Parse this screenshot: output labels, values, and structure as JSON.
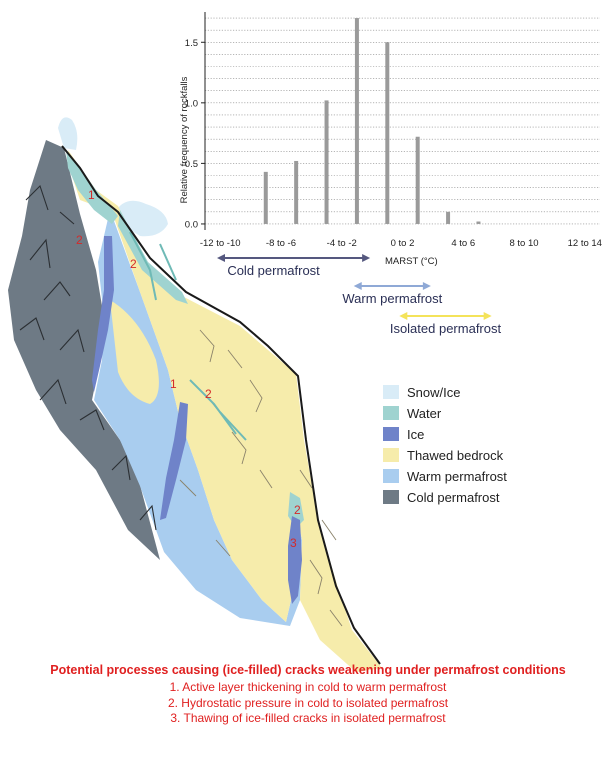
{
  "chart_data": {
    "type": "bar",
    "ylabel": "Relative frequency of rockfalls",
    "xlabel": "MARST (°C)",
    "y_ticks": [
      "0.0",
      "0.5",
      "1.0",
      "1.5"
    ],
    "ylim": [
      -0.05,
      1.75
    ],
    "x_ticks": [
      "-12 to -10",
      "-8 to -6",
      "-4 to -2",
      "0 to 2",
      "4 to 6",
      "8 to 10",
      "12 to 14"
    ],
    "xlim": [
      -12,
      14
    ],
    "grid": true,
    "series": [
      {
        "values": [
          {
            "x": -8,
            "y": 0.43
          },
          {
            "x": -6,
            "y": 0.52
          },
          {
            "x": -4,
            "y": 1.02
          },
          {
            "x": -2,
            "y": 1.7
          },
          {
            "x": 0,
            "y": 1.5
          },
          {
            "x": 2,
            "y": 0.72
          },
          {
            "x": 4,
            "y": 0.1
          },
          {
            "x": 6,
            "y": 0.02
          }
        ]
      }
    ]
  },
  "ranges": [
    {
      "label": "Cold permafrost",
      "from": -12,
      "to": -1,
      "color": "#55587f",
      "arrows": "both"
    },
    {
      "label": "Warm permafrost",
      "from": -3,
      "to": 3,
      "color": "#8fa9d6",
      "arrows": "both"
    },
    {
      "label": "Isolated permafrost",
      "from": 0,
      "to": 7,
      "color": "#f4e35a",
      "arrows": "both"
    }
  ],
  "legend": {
    "items": [
      {
        "label": "Snow/Ice",
        "color": "#d9ecf7"
      },
      {
        "label": "Water",
        "color": "#9fd3d0"
      },
      {
        "label": "Ice",
        "color": "#6f83c9"
      },
      {
        "label": "Thawed bedrock",
        "color": "#f6ecab"
      },
      {
        "label": "Warm permafrost",
        "color": "#a9cdef"
      },
      {
        "label": "Cold permafrost",
        "color": "#6e7a85"
      }
    ]
  },
  "slope_labels": [
    "1",
    "2",
    "2",
    "1",
    "2",
    "2",
    "3"
  ],
  "caption": {
    "title": "Potential processes causing (ice-filled) cracks weakening under permafrost conditions",
    "items": [
      "1. Active layer thickening in cold to warm permafrost",
      "2. Hydrostatic pressure in cold to isolated permafrost",
      "3. Thawing of ice-filled cracks in isolated permafrost"
    ]
  }
}
